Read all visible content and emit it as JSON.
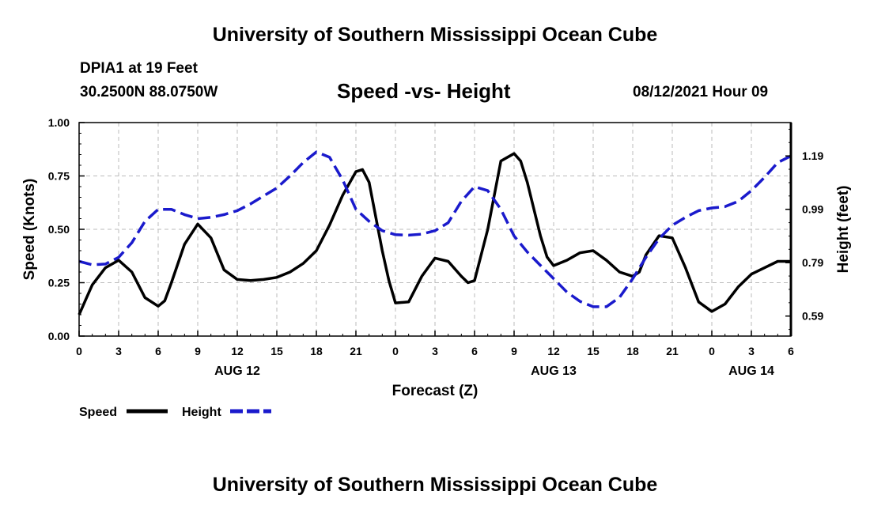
{
  "header": {
    "top_title": "University of Southern Mississippi Ocean Cube",
    "station": "DPIA1 at 19 Feet",
    "coords": "30.2500N  88.0750W",
    "datetime": "08/12/2021 Hour 09"
  },
  "footer": {
    "bottom_title": "University of Southern Mississippi Ocean Cube"
  },
  "colors": {
    "speed": "#000000",
    "height": "#1a1acc",
    "grid": "#bbbbbb"
  },
  "chart_data": {
    "type": "line",
    "title": "Speed -vs- Height",
    "xlabel": "Forecast (Z)",
    "ylabel": "Speed (Knots)",
    "y2label": "Height (feet)",
    "xlim": [
      0,
      54
    ],
    "ylim": [
      0,
      1
    ],
    "y2lim": [
      0.515,
      1.315
    ],
    "x_ticks": [
      0,
      3,
      6,
      9,
      12,
      15,
      18,
      21,
      24,
      27,
      30,
      33,
      36,
      39,
      42,
      45,
      48,
      51,
      54
    ],
    "x_tick_labels": [
      "0",
      "3",
      "6",
      "9",
      "12",
      "15",
      "18",
      "21",
      "0",
      "3",
      "6",
      "9",
      "12",
      "15",
      "18",
      "21",
      "0",
      "3",
      "6"
    ],
    "y_ticks": [
      0,
      0.25,
      0.5,
      0.75,
      1.0
    ],
    "y_tick_labels": [
      "0.00",
      "0.25",
      "0.50",
      "0.75",
      "1.00"
    ],
    "y2_ticks": [
      0.59,
      0.79,
      0.99,
      1.19
    ],
    "y2_tick_labels": [
      "0.59",
      "0.79",
      "0.99",
      "1.19"
    ],
    "date_labels": [
      {
        "x": 12,
        "label": "AUG 12"
      },
      {
        "x": 36,
        "label": "AUG 13"
      },
      {
        "x": 51,
        "label": "AUG 14"
      }
    ],
    "grid": true,
    "series": [
      {
        "name": "Speed",
        "axis": "left",
        "style": "solid",
        "x": [
          0,
          0.5,
          1,
          2,
          3,
          4,
          5,
          6,
          6.5,
          7,
          8,
          9,
          10,
          11,
          12,
          13,
          14,
          15,
          16,
          17,
          18,
          19,
          20,
          21,
          21.5,
          22,
          23,
          23.5,
          24,
          25,
          26,
          27,
          28,
          29,
          29.5,
          30,
          31,
          32,
          33,
          33.5,
          34,
          35,
          35.5,
          36,
          37,
          38,
          39,
          40,
          41,
          42,
          42.5,
          43,
          44,
          45,
          46,
          47,
          48,
          49,
          50,
          51,
          52,
          53,
          54
        ],
        "values": [
          0.1,
          0.17,
          0.24,
          0.32,
          0.355,
          0.3,
          0.18,
          0.14,
          0.165,
          0.25,
          0.43,
          0.525,
          0.46,
          0.31,
          0.265,
          0.26,
          0.265,
          0.275,
          0.3,
          0.34,
          0.4,
          0.52,
          0.66,
          0.77,
          0.78,
          0.72,
          0.4,
          0.26,
          0.155,
          0.16,
          0.28,
          0.365,
          0.35,
          0.28,
          0.25,
          0.26,
          0.5,
          0.82,
          0.855,
          0.82,
          0.72,
          0.47,
          0.37,
          0.33,
          0.355,
          0.39,
          0.4,
          0.355,
          0.3,
          0.28,
          0.3,
          0.38,
          0.47,
          0.46,
          0.32,
          0.16,
          0.115,
          0.15,
          0.23,
          0.29,
          0.32,
          0.35,
          0.35
        ]
      },
      {
        "name": "Height",
        "axis": "right",
        "style": "dashed",
        "x": [
          0,
          1,
          2,
          3,
          4,
          5,
          6,
          7,
          8,
          9,
          10,
          11,
          12,
          13,
          14,
          15,
          16,
          17,
          18,
          19,
          20,
          21,
          22,
          23,
          24,
          25,
          26,
          27,
          28,
          29,
          30,
          31,
          32,
          33,
          34,
          35,
          36,
          37,
          38,
          39,
          40,
          41,
          42,
          43,
          44,
          45,
          46,
          47,
          48,
          49,
          50,
          51,
          52,
          53,
          54
        ],
        "values": [
          0.795,
          0.782,
          0.785,
          0.81,
          0.865,
          0.945,
          0.99,
          0.99,
          0.97,
          0.955,
          0.96,
          0.97,
          0.985,
          1.01,
          1.04,
          1.07,
          1.115,
          1.165,
          1.205,
          1.185,
          1.1,
          0.99,
          0.945,
          0.91,
          0.895,
          0.893,
          0.897,
          0.91,
          0.94,
          1.02,
          1.075,
          1.06,
          0.99,
          0.89,
          0.83,
          0.78,
          0.73,
          0.68,
          0.645,
          0.625,
          0.625,
          0.66,
          0.73,
          0.81,
          0.88,
          0.93,
          0.96,
          0.985,
          0.995,
          1.0,
          1.02,
          1.06,
          1.11,
          1.165,
          1.19
        ]
      }
    ],
    "legend": [
      {
        "label": "Speed",
        "series": "Speed"
      },
      {
        "label": "Height",
        "series": "Height"
      }
    ],
    "legend_placement": "bottom-left"
  }
}
